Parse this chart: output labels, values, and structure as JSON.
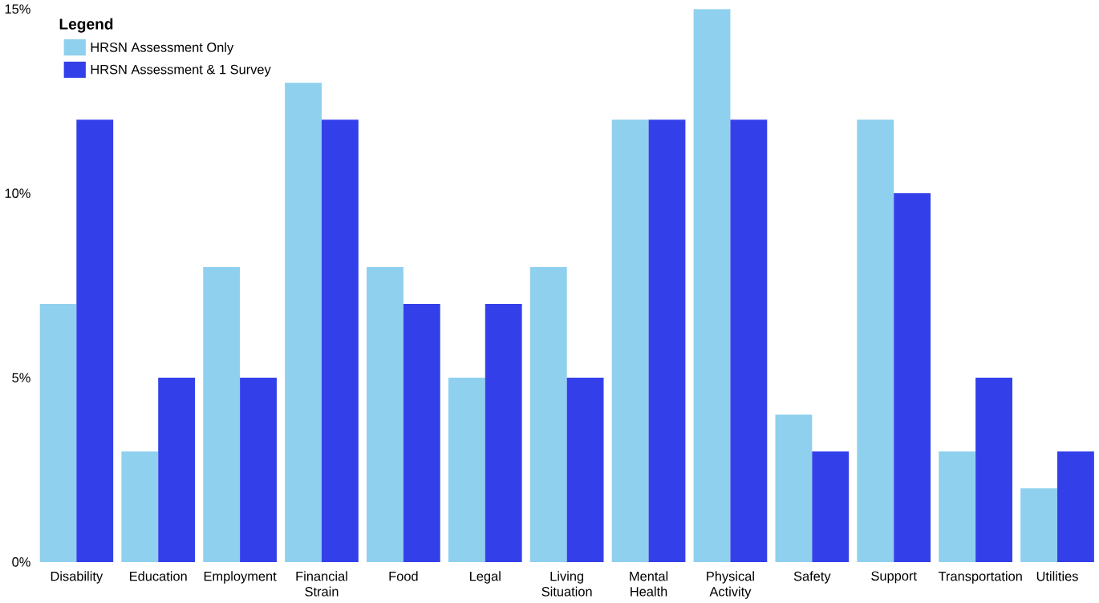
{
  "chart_data": {
    "type": "bar",
    "legend_title": "Legend",
    "categories": [
      "Disability",
      "Education",
      "Employment",
      "Financial Strain",
      "Food",
      "Legal",
      "Living Situation",
      "Mental Health",
      "Physical Activity",
      "Safety",
      "Support",
      "Transportation",
      "Utilities"
    ],
    "series": [
      {
        "name": "HRSN Assessment Only",
        "color": "#8fd0ee",
        "values": [
          7,
          3,
          8,
          13,
          8,
          5,
          8,
          12,
          15,
          4,
          12,
          3,
          2
        ]
      },
      {
        "name": "HRSN Assessment & 1 Survey",
        "color": "#3340ea",
        "values": [
          12,
          5,
          5,
          12,
          7,
          7,
          5,
          12,
          12,
          3,
          10,
          5,
          3
        ]
      }
    ],
    "ylim": [
      0,
      15
    ],
    "yticks": [
      {
        "value": 0,
        "label": "0%"
      },
      {
        "value": 5,
        "label": "5%"
      },
      {
        "value": 10,
        "label": "10%"
      },
      {
        "value": 15,
        "label": "15%"
      }
    ],
    "grid": false,
    "legend": "top left"
  }
}
